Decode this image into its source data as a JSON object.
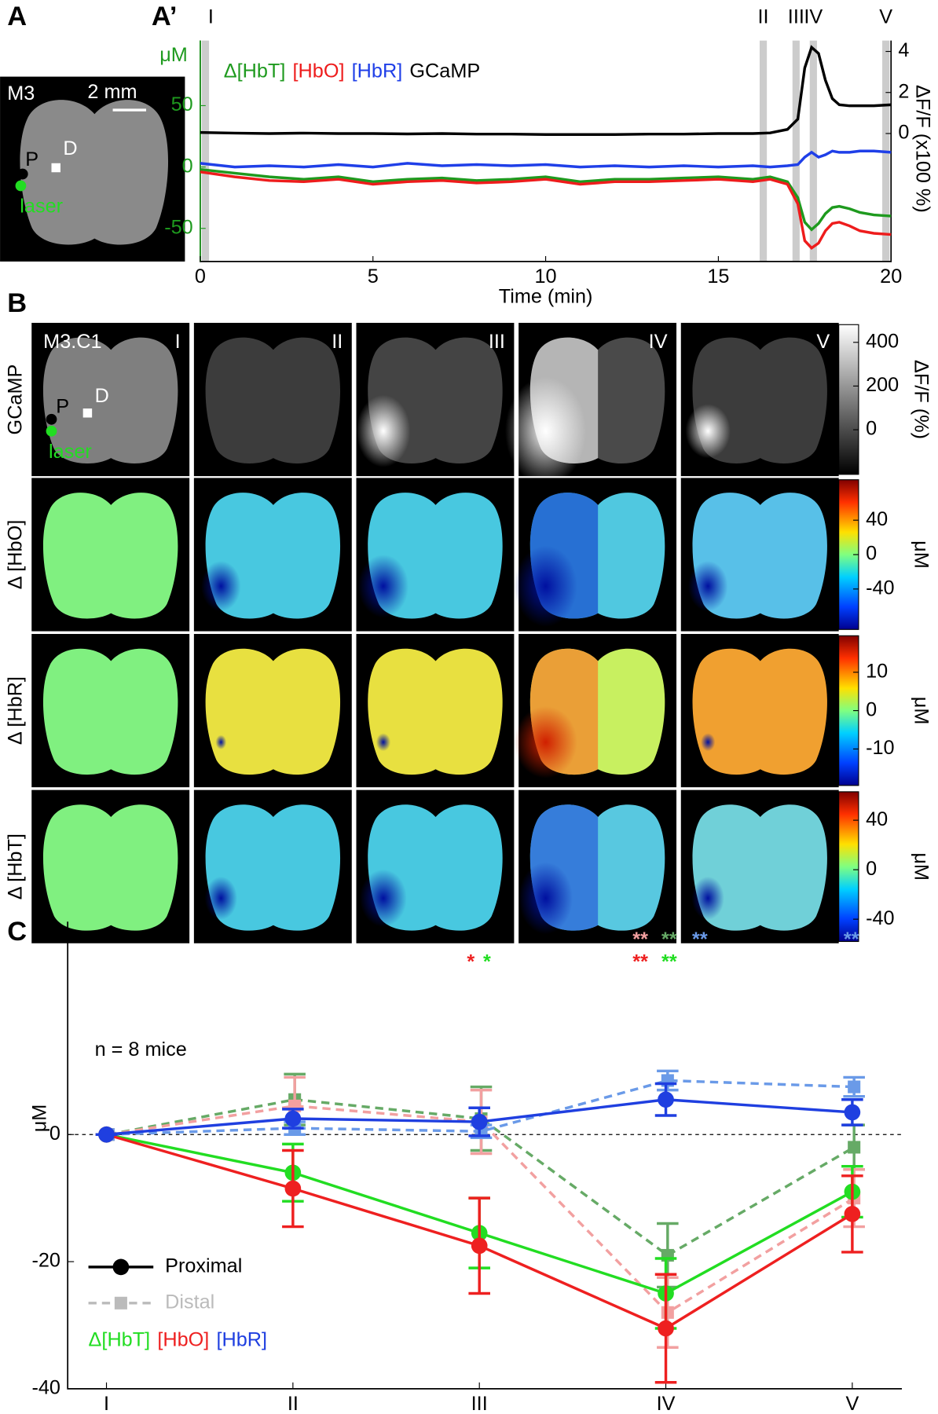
{
  "panel_labels": {
    "a": "A",
    "a2": "A’",
    "b": "B",
    "c": "C"
  },
  "panel_a": {
    "mouse": "M3",
    "scale": "2 mm",
    "points": [
      "P",
      "D",
      "laser"
    ]
  },
  "panel_b": {
    "inset": "M3.C1",
    "points": [
      "P",
      "D",
      "laser"
    ],
    "columns": [
      "I",
      "II",
      "III",
      "IV",
      "V"
    ],
    "rows": [
      "GCaMP",
      "Δ [HbO]",
      "Δ [HbR]",
      "Δ [HbT]"
    ],
    "colorbars": [
      {
        "label": "ΔF/F (%)",
        "lim": [
          -204,
          481
        ],
        "ticks": [
          400,
          200,
          0
        ],
        "scale": "gray"
      },
      {
        "label": "μM",
        "lim": [
          -87,
          87
        ],
        "ticks": [
          40,
          0,
          -40
        ],
        "scale": "jet"
      },
      {
        "label": "μM",
        "lim": [
          -19.5,
          19.5
        ],
        "ticks": [
          10,
          0,
          -10
        ],
        "scale": "jet"
      },
      {
        "label": "μM",
        "lim": [
          -58,
          63
        ],
        "ticks": [
          40,
          0,
          -40
        ],
        "scale": "jet"
      }
    ]
  },
  "chart_data": [
    {
      "type": "line",
      "xlabel": "Time (min)",
      "ylabel": "μM",
      "y2label": "ΔF/F (x100 %)",
      "x": [
        0,
        1,
        2,
        3,
        4,
        5,
        6,
        7,
        8,
        9,
        10,
        11,
        12,
        13,
        14,
        15,
        16,
        16.5,
        17,
        17.3,
        17.5,
        17.7,
        17.9,
        18.1,
        18.3,
        18.5,
        18.8,
        19.1,
        19.5,
        20
      ],
      "xlim": [
        0,
        20
      ],
      "xticks": [
        0,
        5,
        10,
        15,
        20
      ],
      "ylim": [
        -77,
        103
      ],
      "yticks": [
        -50,
        0,
        50
      ],
      "y2lim": [
        -6.24,
        4.53
      ],
      "y2ticks": [
        0,
        2,
        4
      ],
      "epochs": {
        "labels": [
          "I",
          "II",
          "III",
          "IV",
          "V"
        ],
        "x": [
          0.15,
          16.3,
          17.25,
          17.75,
          19.85
        ],
        "color": "#cccccc"
      },
      "series": [
        {
          "name": "Δ[HbT]",
          "color": "#1e9a1e",
          "values": [
            -2,
            -5,
            -8,
            -10,
            -8,
            -12,
            -10,
            -9,
            -11,
            -10,
            -8,
            -12,
            -10,
            -10,
            -9,
            -8,
            -10,
            -8,
            -12,
            -25,
            -45,
            -51,
            -46,
            -38,
            -33,
            -32,
            -34,
            -37,
            -39,
            -40
          ]
        },
        {
          "name": "[HbO]",
          "color": "#ee1c1c",
          "values": [
            -4,
            -8,
            -11,
            -12,
            -10,
            -14,
            -12,
            -11,
            -13,
            -12,
            -10,
            -14,
            -12,
            -12,
            -11,
            -10,
            -12,
            -10,
            -14,
            -30,
            -60,
            -66,
            -62,
            -52,
            -46,
            -45,
            -48,
            -52,
            -54,
            -55
          ]
        },
        {
          "name": "[HbR]",
          "color": "#1f3fe8",
          "values": [
            3,
            0,
            1,
            0,
            2,
            0,
            3,
            1,
            2,
            1,
            2,
            0,
            1,
            0,
            1,
            0,
            1,
            0,
            1,
            2,
            8,
            12,
            8,
            10,
            13,
            12,
            12,
            13,
            13,
            12
          ]
        },
        {
          "name": "GCaMP",
          "color": "#000000",
          "axis": "y2",
          "values": [
            0.05,
            0.02,
            0,
            0.02,
            0,
            0,
            -0.02,
            0,
            -0.03,
            -0.03,
            -0.05,
            -0.05,
            -0.05,
            -0.03,
            -0.03,
            0,
            0,
            0.03,
            0.2,
            0.7,
            3.2,
            4.2,
            3.9,
            2.6,
            1.7,
            1.4,
            1.35,
            1.35,
            1.35,
            1.4
          ]
        }
      ]
    },
    {
      "type": "errorline",
      "ylabel": "μM",
      "note": "n = 8 mice",
      "categories": [
        "I",
        "II",
        "III",
        "IV",
        "V"
      ],
      "ylim": [
        -40,
        33.5
      ],
      "yticks": [
        -40,
        -20,
        0
      ],
      "styles": [
        "Proximal",
        "Distal"
      ],
      "series": [
        {
          "name": "Δ[HbT]",
          "color": "#22dd22",
          "distal_color": "#66aa66",
          "values": [
            0,
            -6,
            -15.5,
            -25,
            -9
          ],
          "errors": [
            0,
            4.5,
            5.5,
            5.5,
            4
          ],
          "distal_values": [
            0,
            5.5,
            2.5,
            -19,
            -2
          ],
          "distal_errors": [
            0,
            4,
            5,
            5,
            3.5
          ]
        },
        {
          "name": "[HbO]",
          "color": "#ee2020",
          "distal_color": "#f2a0a0",
          "values": [
            0,
            -8.5,
            -17.5,
            -30.5,
            -12.5
          ],
          "errors": [
            0,
            6,
            7.5,
            8.5,
            6
          ],
          "distal_values": [
            0,
            4.5,
            2,
            -28,
            -10
          ],
          "distal_errors": [
            0,
            4.5,
            5,
            5.5,
            4.5
          ]
        },
        {
          "name": "[HbR]",
          "color": "#1f3fe0",
          "distal_color": "#6a9ae8",
          "values": [
            0,
            2.5,
            2,
            5.5,
            3.5
          ],
          "errors": [
            0,
            1.5,
            2.2,
            2.5,
            2
          ],
          "distal_values": [
            0,
            1,
            0.5,
            8.5,
            7.5
          ],
          "distal_errors": [
            0,
            1,
            1,
            1.5,
            1.5
          ]
        }
      ],
      "annotations": [
        {
          "text": "*",
          "color": "#ee2020"
        },
        {
          "text": "*",
          "color": "#22dd22"
        },
        {
          "text": "**",
          "color": "#f2a0a0"
        },
        {
          "text": "**",
          "color": "#66aa66"
        },
        {
          "text": "**",
          "color": "#6a9ae8"
        },
        {
          "text": "**",
          "color": "#ee2020"
        },
        {
          "text": "**",
          "color": "#22dd22"
        },
        {
          "text": "**",
          "color": "#6a9ae8"
        }
      ]
    }
  ]
}
